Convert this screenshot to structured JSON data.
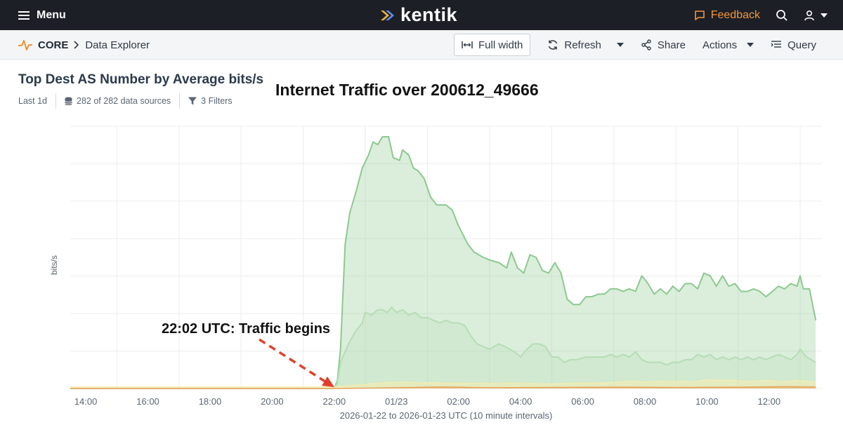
{
  "topbar": {
    "menu_label": "Menu",
    "logo_text": "kentik",
    "feedback_label": "Feedback",
    "colors": {
      "bg": "#1c1f26",
      "feedback": "#f59738"
    }
  },
  "breadcrumb": {
    "section": "CORE",
    "page": "Data Explorer"
  },
  "toolbar": {
    "full_width_label": "Full width",
    "refresh_label": "Refresh",
    "share_label": "Share",
    "actions_label": "Actions",
    "query_label": "Query"
  },
  "panel": {
    "title": "Top Dest AS Number by Average bits/s",
    "time_range": "Last 1d",
    "data_sources": "282 of 282 data sources",
    "filters": "3 Filters"
  },
  "overlay": {
    "title": "Internet Traffic over 200612_49666",
    "annotation": "22:02 UTC: Traffic begins",
    "annotation_color": "#e0402b"
  },
  "chart_data": {
    "type": "area",
    "xlabel": "2026-01-22 to 2026-01-23 UTC (10 minute intervals)",
    "ylabel": "bits/s",
    "x_tick_labels": [
      "14:00",
      "16:00",
      "18:00",
      "20:00",
      "22:00",
      "01/23",
      "02:00",
      "04:00",
      "06:00",
      "08:00",
      "10:00",
      "12:00"
    ],
    "x_range_hours": [
      13.5,
      37.7
    ],
    "y_range": [
      0,
      100
    ],
    "grid": true,
    "series": [
      {
        "color": "#8cc98f",
        "values": [
          [
            13.5,
            0
          ],
          [
            22.0,
            0
          ],
          [
            22.1,
            3
          ],
          [
            22.2,
            15
          ],
          [
            22.35,
            55
          ],
          [
            22.5,
            67
          ],
          [
            22.7,
            75
          ],
          [
            22.9,
            84
          ],
          [
            23.1,
            89
          ],
          [
            23.25,
            94
          ],
          [
            23.4,
            93
          ],
          [
            23.55,
            96
          ],
          [
            23.75,
            96
          ],
          [
            23.9,
            88
          ],
          [
            24.1,
            87
          ],
          [
            24.2,
            91
          ],
          [
            24.4,
            89
          ],
          [
            24.55,
            84
          ],
          [
            24.7,
            83
          ],
          [
            24.9,
            80
          ],
          [
            25.1,
            73
          ],
          [
            25.3,
            70
          ],
          [
            25.6,
            70
          ],
          [
            25.8,
            68
          ],
          [
            26.0,
            62
          ],
          [
            26.3,
            55
          ],
          [
            26.5,
            52
          ],
          [
            26.8,
            50
          ],
          [
            27.0,
            49
          ],
          [
            27.3,
            48
          ],
          [
            27.55,
            46
          ],
          [
            27.7,
            52
          ],
          [
            27.9,
            46
          ],
          [
            28.1,
            44
          ],
          [
            28.3,
            51
          ],
          [
            28.5,
            50
          ],
          [
            28.7,
            45
          ],
          [
            28.9,
            44
          ],
          [
            29.1,
            48
          ],
          [
            29.3,
            44
          ],
          [
            29.5,
            34
          ],
          [
            29.7,
            32
          ],
          [
            29.9,
            32
          ],
          [
            30.1,
            35
          ],
          [
            30.3,
            35
          ],
          [
            30.5,
            36
          ],
          [
            30.7,
            36
          ],
          [
            30.9,
            38
          ],
          [
            31.1,
            38
          ],
          [
            31.3,
            37
          ],
          [
            31.5,
            38
          ],
          [
            31.7,
            37
          ],
          [
            31.9,
            43
          ],
          [
            32.1,
            40
          ],
          [
            32.3,
            36
          ],
          [
            32.5,
            38
          ],
          [
            32.7,
            36
          ],
          [
            32.9,
            39
          ],
          [
            33.1,
            37
          ],
          [
            33.3,
            40
          ],
          [
            33.5,
            40
          ],
          [
            33.7,
            38
          ],
          [
            33.9,
            44
          ],
          [
            34.1,
            43
          ],
          [
            34.3,
            39
          ],
          [
            34.5,
            43
          ],
          [
            34.7,
            39
          ],
          [
            34.9,
            40
          ],
          [
            35.1,
            37
          ],
          [
            35.3,
            37
          ],
          [
            35.5,
            38
          ],
          [
            35.7,
            37
          ],
          [
            35.9,
            35
          ],
          [
            36.1,
            37
          ],
          [
            36.3,
            39
          ],
          [
            36.5,
            38
          ],
          [
            36.7,
            40
          ],
          [
            36.9,
            39
          ],
          [
            37.0,
            43
          ],
          [
            37.1,
            38
          ],
          [
            37.3,
            38
          ],
          [
            37.5,
            26
          ]
        ]
      },
      {
        "color": "#b6ddb5",
        "values": [
          [
            13.5,
            0
          ],
          [
            22.0,
            0
          ],
          [
            22.1,
            2
          ],
          [
            22.2,
            10
          ],
          [
            22.35,
            14
          ],
          [
            22.5,
            18
          ],
          [
            22.7,
            22
          ],
          [
            22.9,
            25
          ],
          [
            23.0,
            29
          ],
          [
            23.2,
            28
          ],
          [
            23.4,
            30
          ],
          [
            23.55,
            30
          ],
          [
            23.7,
            29
          ],
          [
            23.85,
            31
          ],
          [
            24.0,
            29
          ],
          [
            24.2,
            30
          ],
          [
            24.4,
            28
          ],
          [
            24.6,
            29
          ],
          [
            24.8,
            27
          ],
          [
            25.0,
            27
          ],
          [
            25.2,
            26
          ],
          [
            25.4,
            25
          ],
          [
            25.6,
            26
          ],
          [
            25.8,
            25
          ],
          [
            26.0,
            25
          ],
          [
            26.2,
            24
          ],
          [
            26.4,
            20
          ],
          [
            26.6,
            17
          ],
          [
            26.8,
            16
          ],
          [
            27.0,
            15
          ],
          [
            27.3,
            17
          ],
          [
            27.5,
            16
          ],
          [
            27.8,
            14
          ],
          [
            28.0,
            12
          ],
          [
            28.2,
            15
          ],
          [
            28.4,
            17
          ],
          [
            28.6,
            17
          ],
          [
            28.8,
            16
          ],
          [
            29.0,
            12
          ],
          [
            29.2,
            12
          ],
          [
            29.4,
            10
          ],
          [
            29.6,
            11
          ],
          [
            29.8,
            11
          ],
          [
            30.1,
            12
          ],
          [
            30.4,
            12
          ],
          [
            30.7,
            12
          ],
          [
            30.9,
            13
          ],
          [
            31.1,
            12
          ],
          [
            31.3,
            13
          ],
          [
            31.5,
            12
          ],
          [
            31.7,
            14
          ],
          [
            31.9,
            11
          ],
          [
            32.1,
            10
          ],
          [
            32.3,
            10
          ],
          [
            32.5,
            10
          ],
          [
            32.7,
            9
          ],
          [
            32.9,
            10
          ],
          [
            33.1,
            10
          ],
          [
            33.3,
            11
          ],
          [
            33.5,
            11
          ],
          [
            33.7,
            13
          ],
          [
            33.9,
            12
          ],
          [
            34.1,
            13
          ],
          [
            34.3,
            11
          ],
          [
            34.5,
            12
          ],
          [
            34.7,
            11
          ],
          [
            34.9,
            12
          ],
          [
            35.1,
            11
          ],
          [
            35.3,
            12
          ],
          [
            35.5,
            11
          ],
          [
            35.7,
            12
          ],
          [
            35.9,
            11
          ],
          [
            36.1,
            12
          ],
          [
            36.3,
            13
          ],
          [
            36.5,
            12
          ],
          [
            36.7,
            11
          ],
          [
            36.9,
            13
          ],
          [
            37.0,
            15
          ],
          [
            37.2,
            12
          ],
          [
            37.5,
            10
          ]
        ]
      },
      {
        "color": "#f4ecb0",
        "values": [
          [
            13.5,
            0.6
          ],
          [
            22.0,
            0.6
          ],
          [
            22.4,
            1.0
          ],
          [
            22.8,
            1.4
          ],
          [
            23.2,
            1.8
          ],
          [
            23.6,
            2.2
          ],
          [
            24.0,
            2.3
          ],
          [
            24.4,
            2.4
          ],
          [
            24.8,
            2.1
          ],
          [
            25.2,
            2.3
          ],
          [
            25.6,
            2.0
          ],
          [
            26.0,
            2.1
          ],
          [
            26.4,
            1.9
          ],
          [
            26.8,
            2.0
          ],
          [
            27.2,
            1.9
          ],
          [
            27.6,
            2.1
          ],
          [
            28.0,
            2.0
          ],
          [
            28.4,
            1.9
          ],
          [
            28.8,
            1.7
          ],
          [
            29.2,
            1.8
          ],
          [
            29.6,
            2.0
          ],
          [
            30.0,
            2.1
          ],
          [
            30.4,
            2.0
          ],
          [
            30.8,
            2.2
          ],
          [
            31.2,
            2.5
          ],
          [
            31.6,
            2.8
          ],
          [
            32.0,
            2.4
          ],
          [
            32.4,
            2.8
          ],
          [
            32.8,
            2.6
          ],
          [
            33.2,
            2.8
          ],
          [
            33.6,
            2.5
          ],
          [
            34.0,
            3.4
          ],
          [
            34.4,
            3.0
          ],
          [
            34.8,
            3.2
          ],
          [
            35.2,
            2.6
          ],
          [
            35.6,
            2.9
          ],
          [
            36.0,
            3.0
          ],
          [
            36.4,
            2.5
          ],
          [
            36.8,
            3.0
          ],
          [
            37.2,
            2.8
          ],
          [
            37.5,
            2.4
          ]
        ]
      },
      {
        "color": "#e8a25b",
        "values": [
          [
            13.5,
            0
          ],
          [
            22.0,
            0
          ],
          [
            24.0,
            0.3
          ],
          [
            25.5,
            0.6
          ],
          [
            27.0,
            0.3
          ],
          [
            29.0,
            0.4
          ],
          [
            31.0,
            0.5
          ],
          [
            33.0,
            0.4
          ],
          [
            35.0,
            0.5
          ],
          [
            36.5,
            0.7
          ],
          [
            37.5,
            0.6
          ]
        ]
      }
    ]
  }
}
